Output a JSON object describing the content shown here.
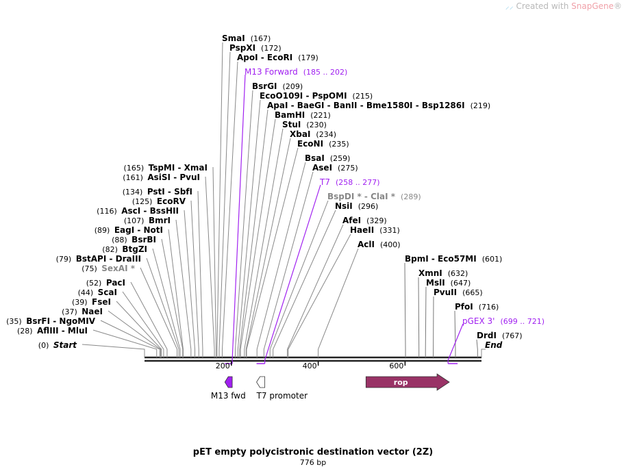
{
  "watermark": {
    "prefix": "Created with ",
    "brand": "SnapGene",
    "suffix": "®"
  },
  "title": "pET empty polycistronic destination vector (2Z)",
  "length_label": "776 bp",
  "sequence_length": 776,
  "colors": {
    "primer": "#a020f0",
    "rop": "#993366",
    "m13_fwd": "#a020f0",
    "t7_promoter": "#ffffff",
    "gray_enzyme": "#888888"
  },
  "right_labels": [
    {
      "name": "SmaI",
      "pos": "(167)",
      "site": 167,
      "kind": "enzyme"
    },
    {
      "name": "PspXI",
      "pos": "(172)",
      "site": 172,
      "kind": "enzyme"
    },
    {
      "name": "ApoI  - EcoRI",
      "pos": "(179)",
      "site": 179,
      "kind": "enzyme"
    },
    {
      "name": "M13 Forward",
      "pos": "(185 .. 202)",
      "site": 202,
      "kind": "primer"
    },
    {
      "name": "BsrGI",
      "pos": "(209)",
      "site": 209,
      "kind": "enzyme"
    },
    {
      "name": "EcoO109I - PspOMI",
      "pos": "(215)",
      "site": 215,
      "kind": "enzyme"
    },
    {
      "name": "ApaI  - BaeGI  - BanII  - Bme1580I - Bsp1286I",
      "pos": "(219)",
      "site": 219,
      "kind": "enzyme"
    },
    {
      "name": "BamHI",
      "pos": "(221)",
      "site": 221,
      "kind": "enzyme"
    },
    {
      "name": "StuI",
      "pos": "(230)",
      "site": 230,
      "kind": "enzyme"
    },
    {
      "name": "XbaI",
      "pos": "(234)",
      "site": 234,
      "kind": "enzyme"
    },
    {
      "name": "EcoNI",
      "pos": "(235)",
      "site": 235,
      "kind": "enzyme"
    },
    {
      "name": "BsaI",
      "pos": "(259)",
      "site": 259,
      "kind": "enzyme"
    },
    {
      "name": "AseI",
      "pos": "(275)",
      "site": 275,
      "kind": "enzyme"
    },
    {
      "name": "T7",
      "pos": "(258 .. 277)",
      "site": 277,
      "kind": "primer"
    },
    {
      "name": "BspDI * - ClaI *",
      "pos": "(289)",
      "site": 289,
      "kind": "gray"
    },
    {
      "name": "NsiI",
      "pos": "(296)",
      "site": 296,
      "kind": "enzyme"
    },
    {
      "name": "AfeI",
      "pos": "(329)",
      "site": 329,
      "kind": "enzyme"
    },
    {
      "name": "HaeII",
      "pos": "(331)",
      "site": 331,
      "kind": "enzyme"
    },
    {
      "name": "AclI",
      "pos": "(400)",
      "site": 400,
      "kind": "enzyme"
    },
    {
      "name": "BpmI  - Eco57MI",
      "pos": "(601)",
      "site": 601,
      "kind": "enzyme"
    },
    {
      "name": "XmnI",
      "pos": "(632)",
      "site": 632,
      "kind": "enzyme"
    },
    {
      "name": "MslI",
      "pos": "(647)",
      "site": 647,
      "kind": "enzyme"
    },
    {
      "name": "PvuII",
      "pos": "(665)",
      "site": 665,
      "kind": "enzyme"
    },
    {
      "name": "PfoI",
      "pos": "(716)",
      "site": 716,
      "kind": "enzyme"
    },
    {
      "name": "pGEX 3'",
      "pos": "(699 .. 721)",
      "site": 699,
      "kind": "primer"
    },
    {
      "name": "DrdI",
      "pos": "(767)",
      "site": 767,
      "kind": "enzyme"
    },
    {
      "name": "End",
      "pos": "",
      "site": 776,
      "kind": "end"
    }
  ],
  "left_labels": [
    {
      "name": "TspMI  - XmaI",
      "pos": "(165)",
      "site": 165,
      "kind": "enzyme"
    },
    {
      "name": "AsiSI  - PvuI",
      "pos": "(161)",
      "site": 161,
      "kind": "enzyme"
    },
    {
      "name": "PstI  - SbfI",
      "pos": "(134)",
      "site": 134,
      "kind": "enzyme"
    },
    {
      "name": "EcoRV",
      "pos": "(125)",
      "site": 125,
      "kind": "enzyme"
    },
    {
      "name": "AscI  - BssHII",
      "pos": "(116)",
      "site": 116,
      "kind": "enzyme"
    },
    {
      "name": "BmrI",
      "pos": "(107)",
      "site": 107,
      "kind": "enzyme"
    },
    {
      "name": "EagI  - NotI",
      "pos": "(89)",
      "site": 89,
      "kind": "enzyme"
    },
    {
      "name": "BsrBI",
      "pos": "(88)",
      "site": 88,
      "kind": "enzyme"
    },
    {
      "name": "BtgZI",
      "pos": "(82)",
      "site": 82,
      "kind": "enzyme"
    },
    {
      "name": "BstAPI  - DraIII",
      "pos": "(79)",
      "site": 79,
      "kind": "enzyme"
    },
    {
      "name": "SexAI *",
      "pos": "(75)",
      "site": 75,
      "kind": "gray"
    },
    {
      "name": "PacI",
      "pos": "(52)",
      "site": 52,
      "kind": "enzyme"
    },
    {
      "name": "ScaI",
      "pos": "(44)",
      "site": 44,
      "kind": "enzyme"
    },
    {
      "name": "FseI",
      "pos": "(39)",
      "site": 39,
      "kind": "enzyme"
    },
    {
      "name": "NaeI",
      "pos": "(37)",
      "site": 37,
      "kind": "enzyme"
    },
    {
      "name": "BsrFI  - NgoMIV",
      "pos": "(35)",
      "site": 35,
      "kind": "enzyme"
    },
    {
      "name": "AflIII  - MluI",
      "pos": "(28)",
      "site": 28,
      "kind": "enzyme"
    },
    {
      "name": "Start",
      "pos": "(0)",
      "site": 0,
      "kind": "start"
    }
  ],
  "primer_ranges": [
    {
      "name": "M13 Forward",
      "start": 185,
      "end": 202
    },
    {
      "name": "T7",
      "start": 258,
      "end": 277
    },
    {
      "name": "pGEX 3'",
      "start": 699,
      "end": 721
    }
  ],
  "ruler_ticks": [
    200,
    400,
    600
  ],
  "features": [
    {
      "name": "M13 fwd",
      "start": 185,
      "end": 202,
      "direction": "reverse",
      "color": "#a020f0",
      "label_below": true
    },
    {
      "name": "T7 promoter",
      "start": 258,
      "end": 277,
      "direction": "reverse",
      "color": "#ffffff",
      "label_below": true
    },
    {
      "name": "rop",
      "start": 510,
      "end": 702,
      "direction": "forward",
      "color": "#993366",
      "label_inside": true
    }
  ]
}
